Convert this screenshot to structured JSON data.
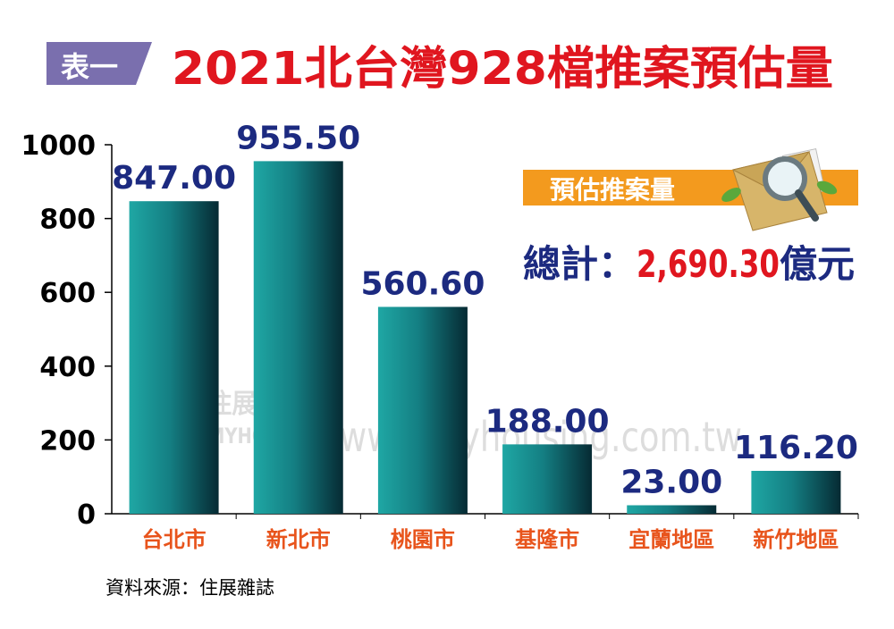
{
  "header": {
    "badge": "表一",
    "title": "2021北台灣928檔推案預估量"
  },
  "summary": {
    "label": "預估推案量",
    "total_prefix": "總計：",
    "total_value": "2,690.30",
    "total_unit": "億元"
  },
  "watermark": {
    "brand": "住展房屋網",
    "brand_en": "MYHOUSING",
    "url": "www.myhousing.com.tw"
  },
  "source": "資料來源：住展雜誌",
  "colors": {
    "badge_bg": "#7a6fae",
    "title": "#e0161f",
    "bar_light": "#1fa7a4",
    "bar_dark": "#062a33",
    "value_label": "#1c2a80",
    "category_label": "#e8541c",
    "summary_band": "#f39a1e",
    "total_value": "#e0161f",
    "total_text": "#1c2a80"
  },
  "chart_data": {
    "type": "bar",
    "categories": [
      "台北市",
      "新北市",
      "桃園市",
      "基隆市",
      "宜蘭地區",
      "新竹地區"
    ],
    "values": [
      847.0,
      955.5,
      560.6,
      188.0,
      23.0,
      116.2
    ],
    "value_labels": [
      "847.00",
      "955.50",
      "560.60",
      "188.00",
      "23.00",
      "116.20"
    ],
    "yticks": [
      "0",
      "200",
      "400",
      "600",
      "800",
      "1000"
    ],
    "ylim": [
      0,
      1000
    ],
    "title": "2021北台灣928檔推案預估量",
    "xlabel": "",
    "ylabel": "",
    "grid": false
  }
}
